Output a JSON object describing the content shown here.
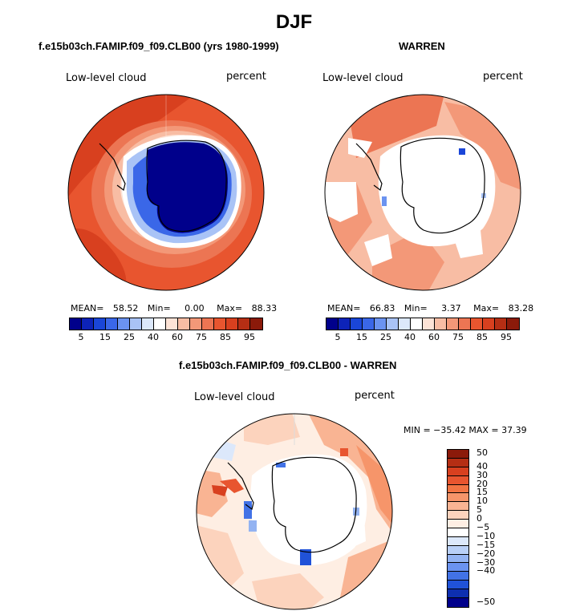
{
  "figure": {
    "title": "DJF",
    "panels": [
      {
        "title": "f.e15b03ch.FAMIP.f09_f09.CLB00 (yrs 1980-1999)",
        "variable": "Low-level cloud",
        "units": "percent",
        "stats": {
          "mean_label": "MEAN=",
          "mean": "58.52",
          "min_label": "Min=",
          "min": "0.00",
          "max_label": "Max=",
          "max": "88.33"
        }
      },
      {
        "title": "WARREN",
        "variable": "Low-level cloud",
        "units": "percent",
        "stats": {
          "mean_label": "MEAN=",
          "mean": "66.83",
          "min_label": "Min=",
          "min": "3.37",
          "max_label": "Max=",
          "max": "83.28"
        }
      },
      {
        "title": "f.e15b03ch.FAMIP.f09_f09.CLB00 - WARREN",
        "variable": "Low-level cloud",
        "units": "percent",
        "stats_text": "MIN = −35.42  MAX =  37.39"
      }
    ],
    "colorbar_field": {
      "colors": [
        "#00008b",
        "#0d23b8",
        "#1a46d8",
        "#3a67e8",
        "#6b93f0",
        "#a9c3f6",
        "#dce8fb",
        "#ffffff",
        "#fde3d6",
        "#f8bda4",
        "#f39878",
        "#ec7553",
        "#e8552f",
        "#d8401f",
        "#b52e14",
        "#8b1a0a"
      ],
      "tick_labels": [
        "5",
        "15",
        "25",
        "40",
        "60",
        "75",
        "85",
        "95"
      ]
    },
    "colorbar_diff": {
      "colors": [
        "#8b1a0a",
        "#b52e14",
        "#d8401f",
        "#e8552f",
        "#f27443",
        "#f6956a",
        "#f9b493",
        "#fcd3bd",
        "#feeee3",
        "#ffffff",
        "#dce8fb",
        "#b9d0f7",
        "#93b3f2",
        "#6b93f0",
        "#4272e6",
        "#2052d8",
        "#0d2fb0",
        "#00008b"
      ],
      "tick_labels": [
        "50",
        "40",
        "30",
        "20",
        "15",
        "10",
        "5",
        "0",
        "−5",
        "−10",
        "−15",
        "−20",
        "−30",
        "−40",
        "−50"
      ]
    }
  }
}
